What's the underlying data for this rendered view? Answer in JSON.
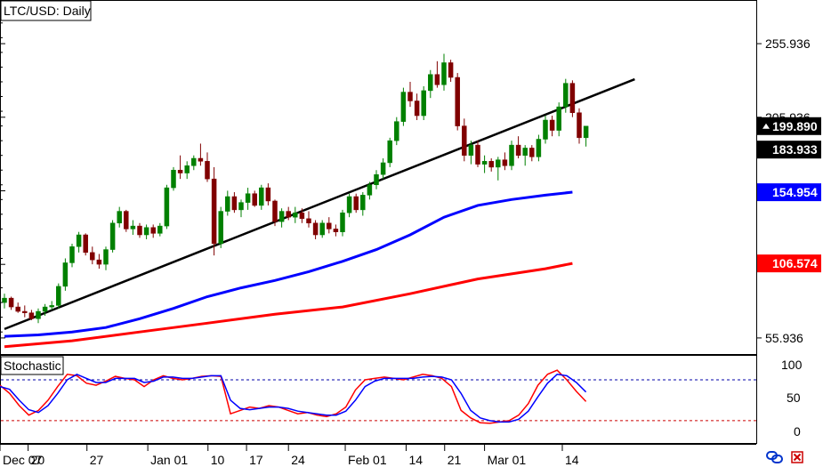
{
  "chart_data": [
    {
      "type": "candlestick",
      "title": "LTC/USD: Daily",
      "x_ticks": [
        "Dec 07",
        "20",
        "27",
        "Jan 01",
        "10",
        "17",
        "24",
        "Feb 01",
        "14",
        "21",
        "Mar 01",
        "14"
      ],
      "y_ticks": [
        255.936,
        205.936,
        155.936,
        105.936,
        55.936
      ],
      "y_tick_labels": [
        "255.936",
        "205.936",
        "55.936"
      ],
      "ylim": [
        45,
        285
      ],
      "grid": false,
      "price_tags": [
        {
          "value": 199.89,
          "label": "199.890",
          "color": "#ffffff",
          "bg": "#000000",
          "arrow": true
        },
        {
          "value": 183.933,
          "label": "183.933",
          "color": "#ffffff",
          "bg": "#000000"
        },
        {
          "value": 154.954,
          "label": "154.954",
          "color": "#ffffff",
          "bg": "#0000ff"
        },
        {
          "value": 106.574,
          "label": "106.574",
          "color": "#ffffff",
          "bg": "#ff0000"
        }
      ],
      "colors": {
        "up": "#008000",
        "down": "#800000",
        "ma_fast": "#0000ff",
        "ma_slow": "#ff0000",
        "trendline": "#000000"
      },
      "trendline": {
        "from": {
          "bar": 0,
          "y": 62
        },
        "to": {
          "bar": 84,
          "y": 215
        }
      },
      "candles": [
        [
          80,
          86,
          76,
          83
        ],
        [
          83,
          84,
          75,
          77
        ],
        [
          77,
          80,
          73,
          74
        ],
        [
          74,
          78,
          70,
          73
        ],
        [
          73,
          75,
          68,
          69
        ],
        [
          69,
          76,
          66,
          74
        ],
        [
          74,
          79,
          71,
          77
        ],
        [
          77,
          81,
          75,
          78
        ],
        [
          78,
          93,
          76,
          91
        ],
        [
          91,
          110,
          88,
          107
        ],
        [
          107,
          120,
          104,
          118
        ],
        [
          118,
          128,
          114,
          126
        ],
        [
          126,
          127,
          112,
          114
        ],
        [
          114,
          118,
          106,
          109
        ],
        [
          109,
          113,
          103,
          106
        ],
        [
          106,
          118,
          102,
          116
        ],
        [
          116,
          136,
          114,
          134
        ],
        [
          134,
          145,
          131,
          142
        ],
        [
          142,
          143,
          128,
          130
        ],
        [
          130,
          136,
          126,
          132
        ],
        [
          132,
          134,
          124,
          126
        ],
        [
          126,
          133,
          123,
          131
        ],
        [
          131,
          133,
          124,
          127
        ],
        [
          127,
          134,
          125,
          132
        ],
        [
          132,
          160,
          130,
          158
        ],
        [
          158,
          172,
          156,
          170
        ],
        [
          170,
          180,
          164,
          168
        ],
        [
          168,
          176,
          164,
          173
        ],
        [
          173,
          180,
          170,
          178
        ],
        [
          178,
          188,
          173,
          176
        ],
        [
          176,
          182,
          162,
          164
        ],
        [
          164,
          172,
          112,
          120
        ],
        [
          120,
          145,
          117,
          142
        ],
        [
          142,
          156,
          139,
          152
        ],
        [
          152,
          155,
          141,
          143
        ],
        [
          143,
          150,
          138,
          148
        ],
        [
          148,
          158,
          143,
          154
        ],
        [
          154,
          156,
          145,
          146
        ],
        [
          146,
          160,
          143,
          158
        ],
        [
          158,
          161,
          146,
          149
        ],
        [
          149,
          150,
          132,
          135
        ],
        [
          135,
          144,
          131,
          142
        ],
        [
          142,
          145,
          136,
          138
        ],
        [
          138,
          145,
          134,
          141
        ],
        [
          141,
          144,
          134,
          137
        ],
        [
          137,
          142,
          131,
          134
        ],
        [
          134,
          136,
          123,
          126
        ],
        [
          126,
          136,
          124,
          134
        ],
        [
          134,
          138,
          127,
          130
        ],
        [
          130,
          133,
          125,
          128
        ],
        [
          128,
          143,
          125,
          141
        ],
        [
          141,
          154,
          138,
          152
        ],
        [
          152,
          154,
          141,
          143
        ],
        [
          143,
          155,
          139,
          153
        ],
        [
          153,
          162,
          150,
          160
        ],
        [
          160,
          170,
          157,
          167
        ],
        [
          167,
          178,
          164,
          175
        ],
        [
          175,
          192,
          172,
          190
        ],
        [
          190,
          206,
          187,
          203
        ],
        [
          203,
          226,
          200,
          223
        ],
        [
          223,
          230,
          213,
          217
        ],
        [
          217,
          222,
          204,
          207
        ],
        [
          207,
          227,
          204,
          224
        ],
        [
          224,
          238,
          219,
          235
        ],
        [
          235,
          244,
          226,
          228
        ],
        [
          228,
          249,
          224,
          243
        ],
        [
          243,
          245,
          230,
          233
        ],
        [
          233,
          236,
          197,
          200
        ],
        [
          200,
          205,
          176,
          180
        ],
        [
          180,
          190,
          174,
          187
        ],
        [
          187,
          190,
          172,
          174
        ],
        [
          174,
          180,
          168,
          176
        ],
        [
          176,
          178,
          169,
          172
        ],
        [
          172,
          179,
          163,
          177
        ],
        [
          177,
          182,
          170,
          173
        ],
        [
          173,
          190,
          170,
          187
        ],
        [
          187,
          193,
          178,
          180
        ],
        [
          180,
          187,
          173,
          185
        ],
        [
          185,
          187,
          176,
          179
        ],
        [
          179,
          194,
          176,
          191
        ],
        [
          191,
          207,
          188,
          204
        ],
        [
          204,
          207,
          193,
          197
        ],
        [
          197,
          216,
          193,
          213
        ],
        [
          213,
          232,
          209,
          229
        ],
        [
          229,
          231,
          206,
          209
        ],
        [
          209,
          212,
          188,
          192
        ],
        [
          192,
          200,
          186,
          199.89
        ]
      ],
      "ma_fast_values": [
        [
          0,
          57
        ],
        [
          5,
          58
        ],
        [
          10,
          60
        ],
        [
          15,
          63
        ],
        [
          20,
          69
        ],
        [
          25,
          76
        ],
        [
          30,
          84
        ],
        [
          35,
          90
        ],
        [
          40,
          95
        ],
        [
          45,
          101
        ],
        [
          50,
          108
        ],
        [
          55,
          116
        ],
        [
          60,
          126
        ],
        [
          65,
          138
        ],
        [
          70,
          146
        ],
        [
          75,
          150
        ],
        [
          80,
          153
        ],
        [
          84,
          155
        ]
      ],
      "ma_slow_values": [
        [
          0,
          50
        ],
        [
          10,
          54
        ],
        [
          20,
          60
        ],
        [
          30,
          66
        ],
        [
          40,
          72
        ],
        [
          50,
          77
        ],
        [
          60,
          86
        ],
        [
          70,
          96
        ],
        [
          80,
          103
        ],
        [
          84,
          106.574
        ]
      ]
    },
    {
      "type": "line",
      "title": "Stochastic",
      "y_ticks": [
        "100",
        "50",
        "0"
      ],
      "ylim": [
        -5,
        110
      ],
      "levels": [
        80,
        20
      ],
      "series": [
        {
          "color": "#ff0000",
          "values": [
            72,
            60,
            42,
            28,
            35,
            50,
            70,
            88,
            86,
            75,
            72,
            78,
            85,
            82,
            80,
            70,
            80,
            86,
            82,
            80,
            82,
            85,
            86,
            85,
            30,
            35,
            40,
            38,
            42,
            40,
            35,
            30,
            32,
            28,
            26,
            30,
            40,
            65,
            80,
            82,
            84,
            82,
            80,
            84,
            88,
            86,
            82,
            70,
            35,
            24,
            17,
            16,
            18,
            20,
            28,
            45,
            72,
            88,
            94,
            80,
            63,
            48
          ]
        },
        {
          "color": "#0000ff",
          "values": [
            70,
            66,
            50,
            36,
            32,
            42,
            60,
            80,
            88,
            82,
            76,
            76,
            82,
            82,
            82,
            76,
            78,
            84,
            84,
            82,
            82,
            84,
            86,
            86,
            50,
            38,
            36,
            38,
            40,
            40,
            38,
            34,
            32,
            30,
            28,
            28,
            34,
            50,
            70,
            78,
            82,
            82,
            82,
            82,
            84,
            85,
            84,
            80,
            60,
            35,
            24,
            20,
            18,
            18,
            22,
            34,
            55,
            75,
            88,
            86,
            76,
            62
          ]
        }
      ]
    }
  ]
}
